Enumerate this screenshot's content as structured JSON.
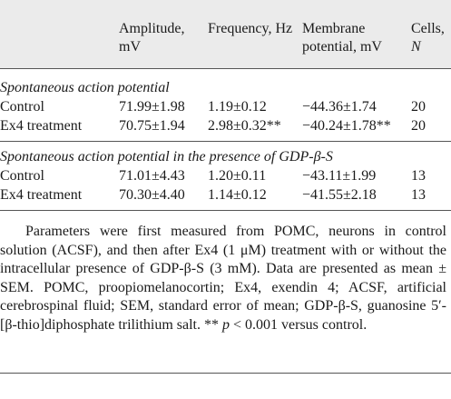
{
  "table": {
    "header": [
      "Amplitude, mV",
      "Frequency, Hz",
      "Membrane potential, mV",
      [
        "Cells,",
        "N"
      ]
    ],
    "sections": [
      {
        "title": "Spontaneous action potential",
        "rows": [
          [
            "Control",
            "71.99±1.98",
            "1.19±0.12",
            "−44.36±1.74",
            "20"
          ],
          [
            "Ex4 treatment",
            "70.75±1.94",
            "2.98±0.32**",
            "−40.24±1.78**",
            "20"
          ]
        ]
      },
      {
        "title": "Spontaneous action potential in the presence of GDP-β-S",
        "rows": [
          [
            "Control",
            "71.01±4.43",
            "1.20±0.11",
            "−43.11±1.99",
            "13"
          ],
          [
            "Ex4 treatment",
            "70.30±4.40",
            "1.14±0.12",
            "−41.55±2.18",
            "13"
          ]
        ]
      }
    ]
  },
  "footnote": [
    "Parameters were first measured from POMC, neurons in control solution (ACSF), and then after Ex4 (1 μM) treatment with or without the intracellular presence of GDP-β-S (3 mM). Data are presented as mean ± SEM. POMC, proopiomelanocortin; Ex4, exendin 4; ACSF, artificial cerebrospinal fluid; SEM, standard error of mean; GDP-β-S, guanosine 5′-[β-thio]diphosphate trilithium salt. ** ",
    "p",
    " < 0.001 versus control."
  ]
}
